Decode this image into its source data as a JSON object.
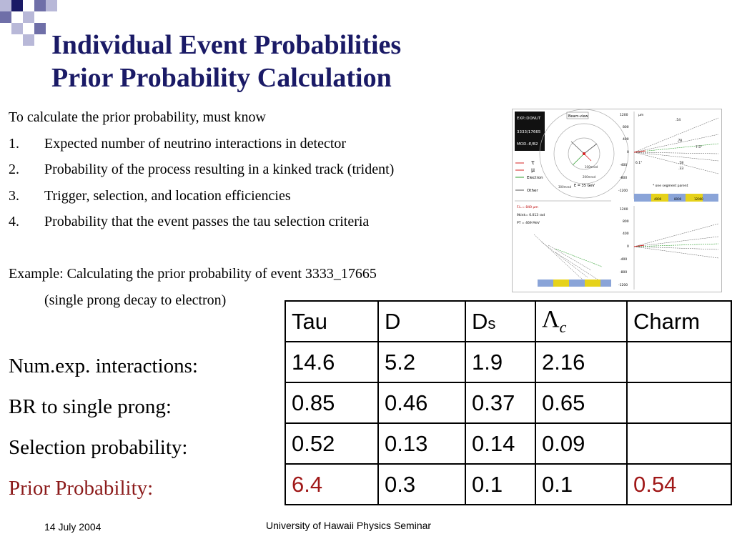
{
  "title": {
    "line1": "Individual Event Probabilities",
    "line2": "Prior Probability Calculation"
  },
  "intro": "To calculate the prior probability, must know",
  "list": [
    {
      "num": "1.",
      "text": "Expected number of neutrino interactions in detector"
    },
    {
      "num": "2.",
      "text": "Probability of the process resulting in a kinked track (trident)"
    },
    {
      "num": "3.",
      "text": "Trigger, selection, and location efficiencies"
    },
    {
      "num": "4.",
      "text": "Probability that the event passes the tau selection criteria"
    }
  ],
  "example": {
    "line1": "Example: Calculating the prior probability of event 3333_17665",
    "line2": "(single prong decay to electron)"
  },
  "row_labels": [
    "Num.exp. interactions:",
    "BR to single prong:",
    "Selection probability:",
    "Prior Probability:"
  ],
  "table": {
    "headers": [
      "Tau",
      "D",
      "D",
      "s",
      "Λ",
      "c",
      "Charm"
    ],
    "rows": [
      [
        "14.6",
        "5.2",
        "1.9",
        "2.16",
        ""
      ],
      [
        "0.85",
        "0.46",
        "0.37",
        "0.65",
        ""
      ],
      [
        "0.52",
        "0.13",
        "0.14",
        "0.09",
        ""
      ],
      [
        "6.4",
        "0.3",
        "0.1",
        "0.1",
        "0.54"
      ]
    ]
  },
  "figure": {
    "box_lines": [
      "EXP.:DONUT",
      "3333/17665",
      "MOD.:E/B2"
    ],
    "beam_view": "Beam-view",
    "legend": [
      "τ",
      "μ",
      "Electron",
      "Other"
    ],
    "rings": [
      "100mrad",
      "200mrad",
      "300mrad"
    ],
    "energy": "E = 35 GeV",
    "note": "* one segment parent",
    "top_ticks": [
      "1200",
      "800",
      "400",
      "0",
      "-400",
      "-800",
      "-1200"
    ],
    "bottom_ticks": [
      "1200",
      "800",
      "400",
      "0",
      "-400",
      "-800",
      "-1200"
    ],
    "x_ticks": [
      "4000",
      "8000",
      "12000"
    ],
    "labels_right": [
      ".54",
      ".78",
      "7.5°",
      "6.1°",
      ".58",
      ".33"
    ],
    "fl_text": "F.L.= 840 μm",
    "kink_text": "θkink= 0.013 rad",
    "pt_text": "PT = 469 MeV",
    "unit": "μm",
    "colors": {
      "electron": "#2e9e2e",
      "tau": "#d62020",
      "module_yellow": "#e6d21a",
      "module_blue": "#8aa4d8"
    }
  },
  "footer": {
    "date": "14 July 2004",
    "seminar": "University of Hawaii Physics Seminar"
  },
  "colors": {
    "title": "#1a1a66",
    "prior_label": "#8b1a1a",
    "highlight_value": "#a01818",
    "corner_dark": "#1a1a66",
    "corner_mid": "#6f6fa8",
    "corner_light": "#b8b8d8"
  }
}
